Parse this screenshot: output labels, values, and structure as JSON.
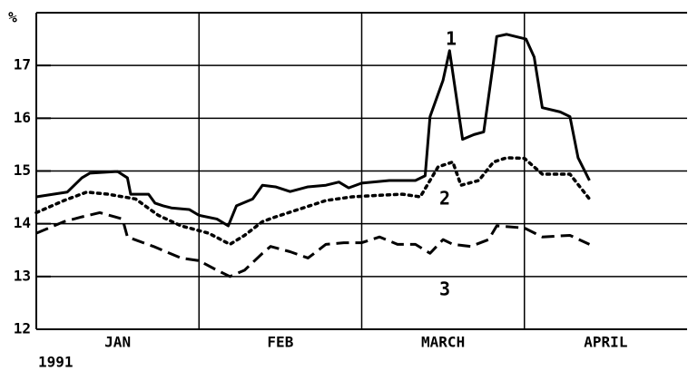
{
  "chart_data": {
    "type": "line",
    "y_unit_label": "%",
    "year_label": "1991",
    "categories": [
      "JAN",
      "FEB",
      "MARCH",
      "APRIL"
    ],
    "xlim": [
      0,
      4
    ],
    "xticks": [
      1,
      2,
      3
    ],
    "ylim": [
      12,
      18
    ],
    "yticks": [
      12,
      13,
      14,
      15,
      16,
      17
    ],
    "grid": true,
    "annotations": [
      "1",
      "2",
      "3"
    ],
    "series": [
      {
        "color": "#000000",
        "style": "solid",
        "x": [
          0,
          0.19,
          0.28,
          0.33,
          0.5,
          0.56,
          0.58,
          0.69,
          0.73,
          0.78,
          0.83,
          0.94,
          1.0,
          1.11,
          1.18,
          1.23,
          1.33,
          1.39,
          1.47,
          1.56,
          1.67,
          1.78,
          1.86,
          1.92,
          2.0,
          2.17,
          2.33,
          2.39,
          2.42,
          2.5,
          2.54,
          2.62,
          2.69,
          2.75,
          2.81,
          2.83,
          2.89,
          3.01,
          3.06,
          3.11,
          3.22,
          3.28,
          3.33,
          3.4
        ],
        "values": [
          14.51,
          14.6,
          14.87,
          14.96,
          14.99,
          14.87,
          14.56,
          14.56,
          14.39,
          14.34,
          14.3,
          14.27,
          14.16,
          14.09,
          13.96,
          14.34,
          14.47,
          14.73,
          14.7,
          14.61,
          14.7,
          14.73,
          14.79,
          14.68,
          14.77,
          14.82,
          14.82,
          14.91,
          16.03,
          16.72,
          17.28,
          15.6,
          15.69,
          15.74,
          17.07,
          17.55,
          17.59,
          17.5,
          17.16,
          16.2,
          16.12,
          16.03,
          15.25,
          14.82
        ]
      },
      {
        "color": "#000000",
        "style": "dotted",
        "x": [
          0,
          0.17,
          0.31,
          0.44,
          0.61,
          0.75,
          0.89,
          1.06,
          1.19,
          1.28,
          1.39,
          1.47,
          1.61,
          1.78,
          1.94,
          2.11,
          2.25,
          2.36,
          2.47,
          2.56,
          2.61,
          2.72,
          2.81,
          2.89,
          3.0,
          3.11,
          3.28,
          3.4
        ],
        "values": [
          14.21,
          14.44,
          14.6,
          14.56,
          14.47,
          14.16,
          13.96,
          13.82,
          13.61,
          13.78,
          14.04,
          14.13,
          14.27,
          14.44,
          14.51,
          14.54,
          14.56,
          14.51,
          15.08,
          15.17,
          14.73,
          14.82,
          15.17,
          15.25,
          15.24,
          14.94,
          14.94,
          14.47
        ]
      },
      {
        "color": "#000000",
        "style": "dashed",
        "x": [
          0,
          0.17,
          0.28,
          0.39,
          0.53,
          0.56,
          0.72,
          0.89,
          1.0,
          1.11,
          1.19,
          1.28,
          1.39,
          1.44,
          1.56,
          1.67,
          1.78,
          1.89,
          2.0,
          2.11,
          2.22,
          2.33,
          2.42,
          2.5,
          2.56,
          2.67,
          2.78,
          2.83,
          3.0,
          3.11,
          3.28,
          3.4
        ],
        "values": [
          13.82,
          14.04,
          14.13,
          14.21,
          14.09,
          13.75,
          13.57,
          13.35,
          13.3,
          13.12,
          13.0,
          13.12,
          13.44,
          13.57,
          13.47,
          13.35,
          13.61,
          13.64,
          13.64,
          13.75,
          13.61,
          13.61,
          13.44,
          13.7,
          13.61,
          13.57,
          13.7,
          13.96,
          13.92,
          13.75,
          13.78,
          13.61
        ]
      }
    ]
  }
}
